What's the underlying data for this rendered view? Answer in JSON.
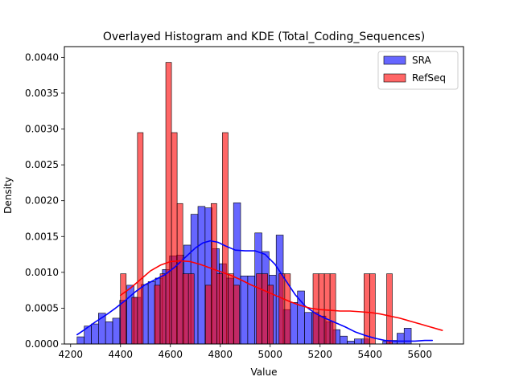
{
  "chart_data": {
    "type": "histogram",
    "title": "Overlayed Histogram and KDE (Total_Coding_Sequences)",
    "xlabel": "Value",
    "ylabel": "Density",
    "xlim": [
      4175,
      5775
    ],
    "ylim": [
      0,
      0.00415
    ],
    "xticks": [
      4200,
      4400,
      4600,
      4800,
      5000,
      5200,
      5400,
      5600
    ],
    "yticks": [
      0,
      0.0005,
      0.001,
      0.0015,
      0.002,
      0.0025,
      0.003,
      0.0035,
      0.004
    ],
    "ytick_labels": [
      "0.0000",
      "0.0005",
      "0.0010",
      "0.0015",
      "0.0020",
      "0.0025",
      "0.0030",
      "0.0035",
      "0.0040"
    ],
    "grid": false,
    "legend": {
      "placement": "upper-right"
    },
    "series": [
      {
        "name": "SRA",
        "face_color": "#0000ff",
        "face_opacity": 0.6,
        "edge_color": "#000000",
        "kde_color": "#0000ff",
        "bins": {
          "start": 4226,
          "width": 28.5,
          "values": [
            0.0001,
            0.00025,
            0.00028,
            0.00043,
            0.00031,
            0.00036,
            0.00061,
            0.00082,
            0.00065,
            0.00083,
            0.00087,
            0.00092,
            0.00104,
            0.00123,
            0.00124,
            0.00138,
            0.00181,
            0.00192,
            0.0019,
            0.00133,
            0.00112,
            0.00092,
            0.00197,
            0.00095,
            0.00095,
            0.00155,
            0.00129,
            0.00096,
            0.00152,
            0.00048,
            0.00058,
            0.00074,
            0.00044,
            0.00044,
            0.00039,
            0.00031,
            0.0002,
            0.00011,
            4e-05,
            7e-05,
            7e-05,
            0,
            0,
            4e-05,
            5e-05,
            0.00015,
            0.00022
          ]
        },
        "kde": {
          "x": [
            4226,
            4260,
            4300,
            4340,
            4380,
            4420,
            4460,
            4500,
            4540,
            4580,
            4620,
            4660,
            4700,
            4730,
            4760,
            4790,
            4820,
            4860,
            4900,
            4940,
            4980,
            5020,
            5060,
            5100,
            5140,
            5180,
            5220,
            5260,
            5300,
            5340,
            5380,
            5420,
            5460,
            5500,
            5540,
            5580,
            5620,
            5650
          ],
          "y": [
            0.00013,
            0.00021,
            0.00031,
            0.0004,
            0.0005,
            0.00061,
            0.00073,
            0.00083,
            0.0009,
            0.00097,
            0.00108,
            0.00121,
            0.00134,
            0.00141,
            0.00144,
            0.00142,
            0.00137,
            0.00131,
            0.0013,
            0.0013,
            0.00125,
            0.00111,
            0.0009,
            0.00069,
            0.00053,
            0.00043,
            0.00036,
            0.0003,
            0.00024,
            0.00017,
            0.00012,
            8e-05,
            5e-05,
            4e-05,
            4e-05,
            4e-05,
            5e-05,
            5e-05
          ]
        }
      },
      {
        "name": "RefSeq",
        "face_color": "#ff0000",
        "face_opacity": 0.6,
        "edge_color": "#000000",
        "kde_color": "#ff0000",
        "bins": {
          "start": 4400,
          "width": 22.7,
          "values": [
            0.00098,
            0,
            0.00065,
            0.00295,
            0,
            0,
            0.00082,
            0.00098,
            0.00393,
            0.00295,
            0.00196,
            0.00098,
            0.00098,
            0,
            0,
            0.00082,
            0.00196,
            0.00098,
            0.00295,
            0.00098,
            0.00082,
            0,
            0,
            0,
            0.00098,
            0.00098,
            0.00082,
            0,
            0.00098,
            0.00098,
            0,
            0,
            0,
            0,
            0.00098,
            0.00098,
            0.00098,
            0.00098,
            0,
            0,
            0,
            0,
            0,
            0.00098,
            0.00098,
            0,
            0,
            0.00098
          ]
        },
        "kde": {
          "x": [
            4400,
            4440,
            4480,
            4520,
            4560,
            4600,
            4640,
            4680,
            4720,
            4760,
            4800,
            4840,
            4880,
            4920,
            4960,
            5000,
            5040,
            5080,
            5120,
            5160,
            5200,
            5240,
            5280,
            5320,
            5360,
            5400,
            5440,
            5480,
            5520,
            5560,
            5600,
            5640,
            5690
          ],
          "y": [
            0.00068,
            0.00078,
            0.0009,
            0.00102,
            0.0011,
            0.00115,
            0.00116,
            0.00115,
            0.00111,
            0.00106,
            0.00101,
            0.00096,
            0.0009,
            0.00083,
            0.00077,
            0.00071,
            0.00065,
            0.00059,
            0.00054,
            0.0005,
            0.00048,
            0.00047,
            0.00046,
            0.00046,
            0.00045,
            0.00044,
            0.00042,
            0.00039,
            0.00036,
            0.00032,
            0.00028,
            0.00024,
            0.00019
          ]
        }
      }
    ]
  }
}
